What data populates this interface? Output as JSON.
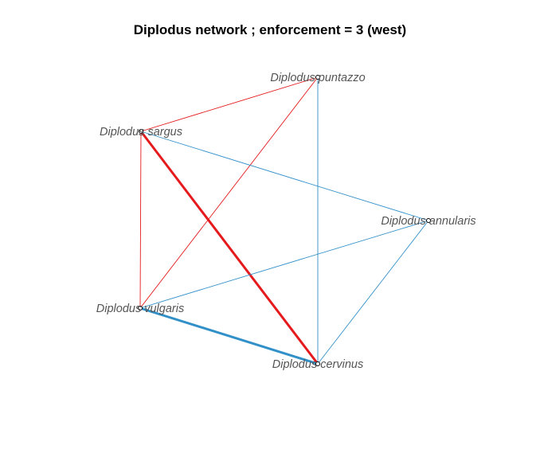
{
  "title": "Diplodus network ; enforcement = 3 (west)",
  "colors": {
    "positive": "#e41a1c",
    "negative": "#3190c8",
    "node_stroke": "#000000",
    "label": "#555555"
  },
  "network": {
    "nodes": [
      {
        "id": "puntazzo",
        "label": "Diplodus puntazzo"
      },
      {
        "id": "sargus",
        "label": "Diplodus sargus"
      },
      {
        "id": "annularis",
        "label": "Diplodus annularis"
      },
      {
        "id": "vulgaris",
        "label": "Diplodus vulgaris"
      },
      {
        "id": "cervinus",
        "label": "Diplodus cervinus"
      }
    ],
    "edges": [
      {
        "from": "sargus",
        "to": "puntazzo",
        "sign": "positive",
        "weight": 1
      },
      {
        "from": "sargus",
        "to": "vulgaris",
        "sign": "positive",
        "weight": 1
      },
      {
        "from": "sargus",
        "to": "cervinus",
        "sign": "positive",
        "weight": 3
      },
      {
        "from": "puntazzo",
        "to": "vulgaris",
        "sign": "positive",
        "weight": 1
      },
      {
        "from": "puntazzo",
        "to": "cervinus",
        "sign": "negative",
        "weight": 1
      },
      {
        "from": "sargus",
        "to": "annularis",
        "sign": "negative",
        "weight": 1
      },
      {
        "from": "annularis",
        "to": "vulgaris",
        "sign": "negative",
        "weight": 1
      },
      {
        "from": "annularis",
        "to": "cervinus",
        "sign": "negative",
        "weight": 1
      },
      {
        "from": "vulgaris",
        "to": "cervinus",
        "sign": "negative",
        "weight": 3
      }
    ]
  }
}
